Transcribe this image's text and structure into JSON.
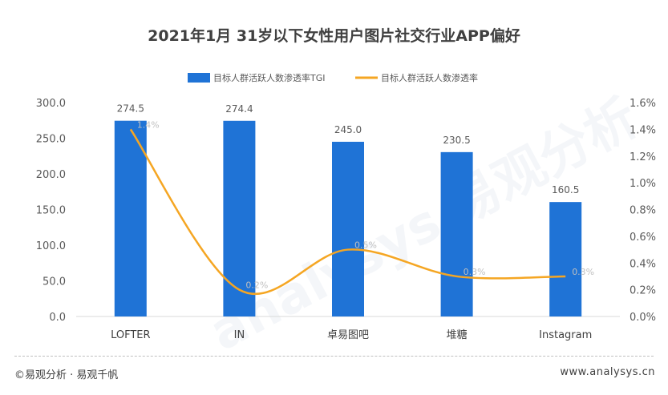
{
  "title": "2021年1月 31岁以下女性用户图片社交行业APP偏好",
  "footer": {
    "source": "©易观分析 · 易观千帆",
    "url": "www.analysys.cn"
  },
  "watermark": "analysys 易观分析",
  "colors": {
    "bar": "#1f73d6",
    "line": "#f5a623",
    "axis_text": "#595959",
    "label_text": "#595959",
    "line_label": "#bfbfbf"
  },
  "chart_data": {
    "type": "bar",
    "categories": [
      "LOFTER",
      "IN",
      "卓易图吧",
      "堆糖",
      "Instagram"
    ],
    "series": [
      {
        "name": "目标人群活跃人数渗透率TGI",
        "kind": "bar",
        "axis": "left",
        "values": [
          274.5,
          274.4,
          245.0,
          230.5,
          160.5
        ],
        "labels": [
          "274.5",
          "274.4",
          "245.0",
          "230.5",
          "160.5"
        ]
      },
      {
        "name": "目标人群活跃人数渗透率",
        "kind": "line",
        "axis": "right",
        "values": [
          1.4,
          0.2,
          0.5,
          0.3,
          0.3
        ],
        "labels": [
          "1.4%",
          "0.2%",
          "0.5%",
          "0.3%",
          "0.3%"
        ]
      }
    ],
    "left_axis": {
      "ylim": [
        0,
        300
      ],
      "ticks": [
        "0.0",
        "50.0",
        "100.0",
        "150.0",
        "200.0",
        "250.0",
        "300.0"
      ]
    },
    "right_axis": {
      "ylim": [
        0,
        1.6
      ],
      "ticks": [
        "0.0%",
        "0.2%",
        "0.4%",
        "0.6%",
        "0.8%",
        "1.0%",
        "1.2%",
        "1.4%",
        "1.6%"
      ]
    },
    "legend_position": "top-center",
    "grid": false
  }
}
